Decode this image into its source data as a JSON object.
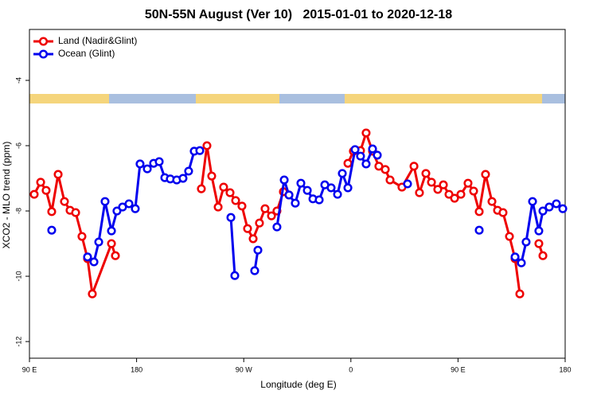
{
  "chart_data": {
    "type": "line",
    "title": "50N-55N August (Ver 10)   2015-01-01 to 2020-12-18",
    "x_label": "Longitude (deg E)",
    "y_label": "XCO2 - MLO trend (ppm)",
    "xlim": [
      90,
      540
    ],
    "xticks": [
      {
        "value": 90,
        "label": "90 E"
      },
      180,
      {
        "value": 270,
        "label": "90 W"
      },
      {
        "value": 360,
        "label": "0"
      },
      {
        "value": 450,
        "label": "90 E"
      },
      {
        "value": 540,
        "label": "180"
      }
    ],
    "ylim": [
      -12.51,
      -2.44
    ],
    "yticks": [
      -4,
      -6,
      -8,
      -10,
      -12
    ],
    "legend": "upper left",
    "series": [
      {
        "name": "Land (Nadir&Glint)",
        "color": "#ee0000",
        "x": [
          94.0,
          99.4,
          104.0,
          108.7,
          114.1,
          119.4,
          124.1,
          128.8,
          134.1,
          138.8,
          142.8,
          158.9,
          162.2,
          null,
          234.4,
          239.1,
          243.1,
          248.5,
          253.1,
          258.5,
          263.2,
          268.5,
          273.2,
          277.9,
          283.2,
          287.9,
          293.3,
          297.9,
          303.3,
          308.0,
          null,
          357.5,
          362.1,
          368.1,
          372.8,
          378.2,
          383.5,
          388.9,
          392.9,
          402.9,
          413.0,
          417.6,
          423.0,
          427.7,
          433.0,
          437.7,
          442.4,
          447.1,
          452.4,
          458.4,
          463.1,
          467.8,
          473.1,
          478.5,
          483.2,
          487.8,
          493.2,
          497.9,
          501.9,
          null,
          517.9,
          521.3
        ],
        "values": [
          -7.49,
          -7.12,
          -7.37,
          -8.02,
          -6.88,
          -7.71,
          -7.98,
          -8.05,
          -8.78,
          -9.46,
          -10.54,
          -9.0,
          -9.37,
          null,
          -7.32,
          -6.0,
          -6.93,
          -7.88,
          -7.27,
          -7.44,
          -7.68,
          -7.85,
          -8.54,
          -8.85,
          -8.37,
          -7.93,
          -8.15,
          -8.0,
          -7.41,
          -7.51,
          null,
          -6.54,
          -6.17,
          -6.15,
          -5.61,
          -6.17,
          -6.63,
          -6.73,
          -7.05,
          -7.27,
          -6.63,
          -7.44,
          -6.85,
          -7.12,
          -7.34,
          -7.2,
          -7.49,
          -7.61,
          -7.49,
          -7.15,
          -7.39,
          -8.02,
          -6.88,
          -7.71,
          -7.98,
          -8.05,
          -8.78,
          -9.46,
          -10.54,
          null,
          -9.0,
          -9.37
        ]
      },
      {
        "name": "Ocean (Glint)",
        "color": "#0000ee",
        "x": [
          108.7,
          null,
          138.8,
          144.2,
          148.2,
          153.5,
          158.9,
          163.5,
          168.2,
          173.6,
          178.9,
          182.9,
          189.0,
          194.3,
          199.0,
          203.7,
          208.3,
          213.7,
          219.0,
          223.7,
          228.4,
          233.1,
          null,
          259.2,
          262.5,
          null,
          279.2,
          281.9,
          null,
          297.9,
          304.0,
          308.0,
          313.3,
          318.0,
          323.4,
          328.1,
          333.4,
          338.1,
          343.4,
          348.8,
          352.8,
          357.5,
          363.5,
          368.1,
          372.8,
          378.2,
          382.2,
          null,
          407.6,
          null,
          467.8,
          null,
          497.9,
          503.2,
          507.2,
          512.6,
          517.9,
          521.3,
          526.6,
          532.6,
          538.0
        ],
        "values": [
          -8.59,
          null,
          -9.41,
          -9.56,
          -8.95,
          -7.71,
          -8.61,
          -8.0,
          -7.88,
          -7.78,
          -7.93,
          -6.56,
          -6.71,
          -6.54,
          -6.49,
          -6.98,
          -7.02,
          -7.05,
          -7.0,
          -6.78,
          -6.17,
          -6.15,
          null,
          -8.2,
          -9.98,
          null,
          -9.83,
          -9.2,
          null,
          -8.49,
          -7.05,
          -7.51,
          -7.76,
          -7.15,
          -7.37,
          -7.63,
          -7.66,
          -7.2,
          -7.29,
          -7.49,
          -6.85,
          -7.29,
          -6.12,
          -6.32,
          -6.56,
          -6.1,
          -6.29,
          null,
          -7.17,
          null,
          -8.59,
          null,
          -9.41,
          -9.59,
          -8.95,
          -7.71,
          -8.61,
          -8.0,
          -7.88,
          -7.78,
          -7.93
        ]
      }
    ]
  }
}
